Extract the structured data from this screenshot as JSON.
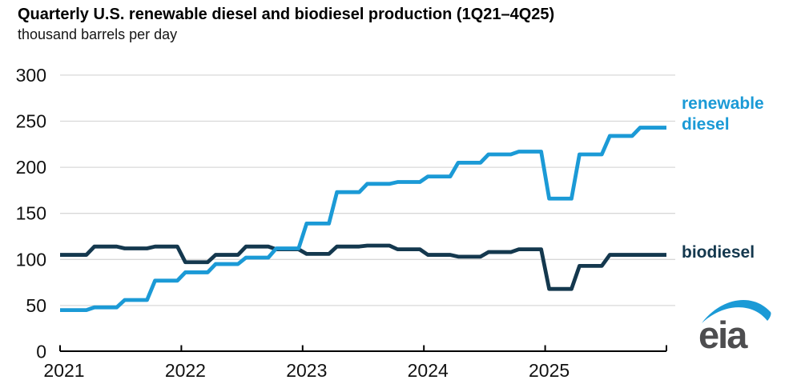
{
  "header": {
    "title": "Quarterly U.S. renewable diesel and biodiesel production (1Q21–4Q25)",
    "subtitle": "thousand barrels per day"
  },
  "chart_data": {
    "type": "line",
    "style": "stepped-quarterly",
    "title": "Quarterly U.S. renewable diesel and biodiesel production (1Q21–4Q25)",
    "ylabel": "thousand barrels per day",
    "xlabel": "",
    "ylim": [
      0,
      300
    ],
    "yticks": [
      0,
      50,
      100,
      150,
      200,
      250,
      300
    ],
    "grid": true,
    "x_labels": [
      "2021",
      "2022",
      "2023",
      "2024",
      "2025"
    ],
    "categories": [
      "1Q21",
      "2Q21",
      "3Q21",
      "4Q21",
      "1Q22",
      "2Q22",
      "3Q22",
      "4Q22",
      "1Q23",
      "2Q23",
      "3Q23",
      "4Q23",
      "1Q24",
      "2Q24",
      "3Q24",
      "4Q24",
      "1Q25",
      "2Q25",
      "3Q25",
      "4Q25"
    ],
    "series": [
      {
        "name": "renewable diesel",
        "color": "#1b9ad6",
        "values": [
          45,
          48,
          56,
          77,
          86,
          95,
          102,
          112,
          139,
          173,
          182,
          184,
          190,
          205,
          214,
          217,
          166,
          214,
          234,
          243
        ]
      },
      {
        "name": "biodiesel",
        "color": "#14384e",
        "values": [
          105,
          114,
          112,
          114,
          97,
          105,
          114,
          111,
          106,
          114,
          115,
          111,
          105,
          103,
          108,
          111,
          68,
          93,
          105,
          105
        ]
      }
    ],
    "legend_position": "right-annotations"
  },
  "annotations": {
    "renewable_diesel": "renewable diesel",
    "biodiesel": "biodiesel"
  },
  "logo": {
    "text": "eia"
  },
  "colors": {
    "renewable_diesel": "#1b9ad6",
    "biodiesel": "#14384e",
    "gridline": "#d8d8d8",
    "axis": "#000000",
    "logo_text": "#4d4d4f"
  }
}
